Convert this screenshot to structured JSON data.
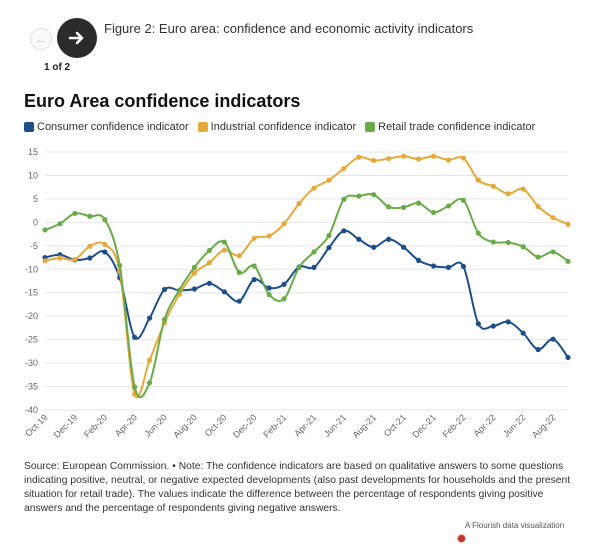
{
  "nav": {
    "caption": "Figure 2: Euro area: confidence and economic activity indicators",
    "counter": "1 of 2"
  },
  "footer": {
    "source": "Source: European Commission. • Note: The confidence indicators are based on qualitative answers to some questions indicating positive, neutral, or negative expected developments (also past developments for households and the present situation for retail trade). The values indicate the difference between the percentage of respondents giving positive answers and the percentage of respondents giving negative answers.",
    "credit": "A Flourish data visualization"
  },
  "chart_data": {
    "type": "line",
    "title": "Euro Area confidence indicators",
    "xlabel": "",
    "ylabel": "",
    "ylim": [
      -40,
      15
    ],
    "yticks": [
      15,
      10,
      5,
      0,
      -5,
      -10,
      -15,
      -20,
      -25,
      -30,
      -35,
      -40
    ],
    "x": [
      "Oct-19",
      "Nov-19",
      "Dec-19",
      "Jan-20",
      "Feb-20",
      "Mar-20",
      "Apr-20",
      "May-20",
      "Jun-20",
      "Jul-20",
      "Aug-20",
      "Sep-20",
      "Oct-20",
      "Nov-20",
      "Dec-20",
      "Jan-21",
      "Feb-21",
      "Mar-21",
      "Apr-21",
      "May-21",
      "Jun-21",
      "Jul-21",
      "Aug-21",
      "Sep-21",
      "Oct-21",
      "Nov-21",
      "Dec-21",
      "Jan-22",
      "Feb-22",
      "Mar-22",
      "Apr-22",
      "May-22",
      "Jun-22",
      "Jul-22",
      "Aug-22",
      "Sep-22"
    ],
    "xtick_labels": [
      "Oct-19",
      "Dec-19",
      "Feb-20",
      "Apr-20",
      "Jun-20",
      "Aug-20",
      "Oct-20",
      "Dec-20",
      "Feb-21",
      "Apr-21",
      "Jun-21",
      "Aug-21",
      "Oct-21",
      "Dec-21",
      "Feb-22",
      "Apr-22",
      "Jun-22",
      "Aug-22"
    ],
    "grid": true,
    "legend_position": "top-left",
    "series": [
      {
        "name": "Consumer confidence indicator",
        "color": "#1d4e89",
        "values": [
          -7.5,
          -6.9,
          -8.0,
          -7.6,
          -6.3,
          -11.8,
          -24.5,
          -20.4,
          -14.3,
          -14.5,
          -14.2,
          -13.0,
          -14.8,
          -16.8,
          -12.2,
          -14.0,
          -13.2,
          -9.5,
          -9.6,
          -5.4,
          -1.8,
          -3.6,
          -5.3,
          -3.6,
          -5.3,
          -8.1,
          -9.3,
          -9.6,
          -9.4,
          -21.6,
          -22.1,
          -21.2,
          -23.6,
          -27.1,
          -24.9,
          -28.8
        ]
      },
      {
        "name": "Industrial confidence indicator",
        "color": "#e5a93b",
        "values": [
          -8.2,
          -7.6,
          -7.9,
          -5.1,
          -4.7,
          -10.5,
          -36.6,
          -29.4,
          -21.4,
          -15.3,
          -10.8,
          -8.6,
          -5.9,
          -7.1,
          -3.4,
          -2.9,
          -0.3,
          4.0,
          7.3,
          9.0,
          11.5,
          13.9,
          13.2,
          13.6,
          14.1,
          13.5,
          14.1,
          13.3,
          13.7,
          9.0,
          7.7,
          6.1,
          7.1,
          3.4,
          1.0,
          -0.4
        ]
      },
      {
        "name": "Retail trade confidence indicator",
        "color": "#6aaa48",
        "values": [
          -1.6,
          -0.3,
          1.9,
          1.3,
          0.6,
          -9.2,
          -35.1,
          -34.2,
          -20.7,
          -14.4,
          -9.6,
          -6.0,
          -4.2,
          -10.7,
          -9.3,
          -15.4,
          -16.3,
          -9.6,
          -6.3,
          -2.8,
          4.9,
          5.6,
          5.9,
          3.3,
          3.2,
          4.1,
          2.1,
          3.5,
          4.7,
          -2.3,
          -4.2,
          -4.3,
          -5.2,
          -7.4,
          -6.3,
          -8.3
        ]
      }
    ]
  }
}
